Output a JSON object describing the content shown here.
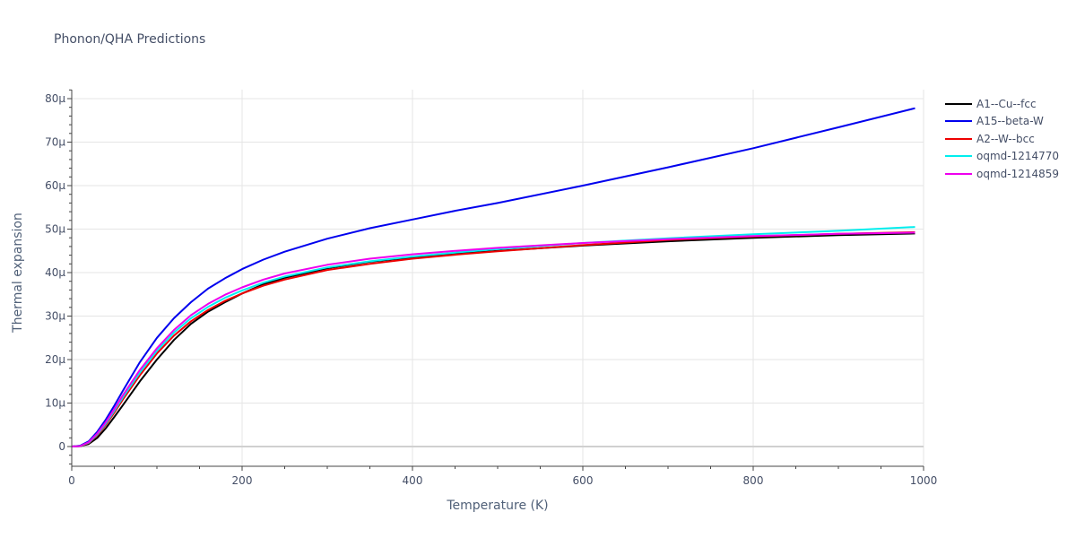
{
  "title": "Phonon/QHA Predictions",
  "colors": {
    "text": "#444e66",
    "grid": "#e5e5e5",
    "zeroline": "#d0d0d0",
    "axis": "#444444"
  },
  "chart_data": {
    "type": "line",
    "title": "Phonon/QHA Predictions",
    "xlabel": "Temperature (K)",
    "ylabel": "Thermal expansion",
    "xlim": [
      0,
      1000
    ],
    "ylim": [
      -4.5,
      82
    ],
    "grid": true,
    "legend_position": "right",
    "x_ticks": [
      0,
      200,
      400,
      600,
      800,
      1000
    ],
    "x_tick_labels": [
      "0",
      "200",
      "400",
      "600",
      "800",
      "1000"
    ],
    "y_ticks": [
      0,
      10,
      20,
      30,
      40,
      50,
      60,
      70,
      80
    ],
    "y_tick_labels": [
      "0",
      "10μ",
      "20μ",
      "30μ",
      "40μ",
      "50μ",
      "60μ",
      "70μ",
      "80μ"
    ],
    "y_unit": "1e-6 /K",
    "x": [
      0,
      10,
      20,
      30,
      40,
      50,
      60,
      80,
      100,
      120,
      140,
      160,
      180,
      200,
      225,
      250,
      300,
      350,
      400,
      450,
      500,
      600,
      700,
      800,
      900,
      990
    ],
    "series": [
      {
        "name": "A1--Cu--fcc",
        "color": "#000000",
        "values": [
          0,
          0.1,
          0.6,
          2.0,
          4.2,
          6.8,
          9.5,
          15.0,
          20.0,
          24.5,
          28.2,
          31.0,
          33.2,
          35.2,
          37.3,
          38.8,
          41.0,
          42.5,
          43.5,
          44.3,
          45.0,
          46.2,
          47.2,
          48.0,
          48.6,
          49.0
        ]
      },
      {
        "name": "A15--beta-W",
        "color": "#0000ee",
        "values": [
          0,
          0.2,
          1.2,
          3.4,
          6.2,
          9.4,
          12.8,
          19.4,
          25.0,
          29.5,
          33.2,
          36.3,
          38.7,
          40.8,
          43.0,
          44.8,
          47.8,
          50.2,
          52.2,
          54.2,
          56.0,
          60.0,
          64.2,
          68.6,
          73.4,
          77.8
        ]
      },
      {
        "name": "A2--W--bcc",
        "color": "#ee0000",
        "values": [
          0,
          0.1,
          0.8,
          2.6,
          5.0,
          7.8,
          10.8,
          16.4,
          21.4,
          25.5,
          28.8,
          31.4,
          33.5,
          35.2,
          37.0,
          38.4,
          40.6,
          42.0,
          43.2,
          44.1,
          44.9,
          46.3,
          47.5,
          48.3,
          48.9,
          49.3
        ]
      },
      {
        "name": "oqmd-1214770",
        "color": "#00eeee",
        "values": [
          0,
          0.1,
          0.9,
          2.8,
          5.3,
          8.2,
          11.3,
          17.0,
          22.0,
          26.2,
          29.5,
          32.1,
          34.2,
          35.9,
          37.7,
          39.1,
          41.2,
          42.6,
          43.7,
          44.6,
          45.4,
          46.8,
          47.9,
          48.8,
          49.6,
          50.5
        ]
      },
      {
        "name": "oqmd-1214859",
        "color": "#ee00ee",
        "values": [
          0,
          0.1,
          1.0,
          3.0,
          5.6,
          8.6,
          11.8,
          17.6,
          22.6,
          26.8,
          30.2,
          32.8,
          34.9,
          36.6,
          38.4,
          39.8,
          41.8,
          43.2,
          44.2,
          45.0,
          45.7,
          46.8,
          47.7,
          48.4,
          48.9,
          49.2
        ]
      }
    ]
  },
  "legend": {
    "items": [
      {
        "label": "A1--Cu--fcc",
        "color": "#000000"
      },
      {
        "label": "A15--beta-W",
        "color": "#0000ee"
      },
      {
        "label": "A2--W--bcc",
        "color": "#ee0000"
      },
      {
        "label": "oqmd-1214770",
        "color": "#00eeee"
      },
      {
        "label": "oqmd-1214859",
        "color": "#ee00ee"
      }
    ]
  }
}
